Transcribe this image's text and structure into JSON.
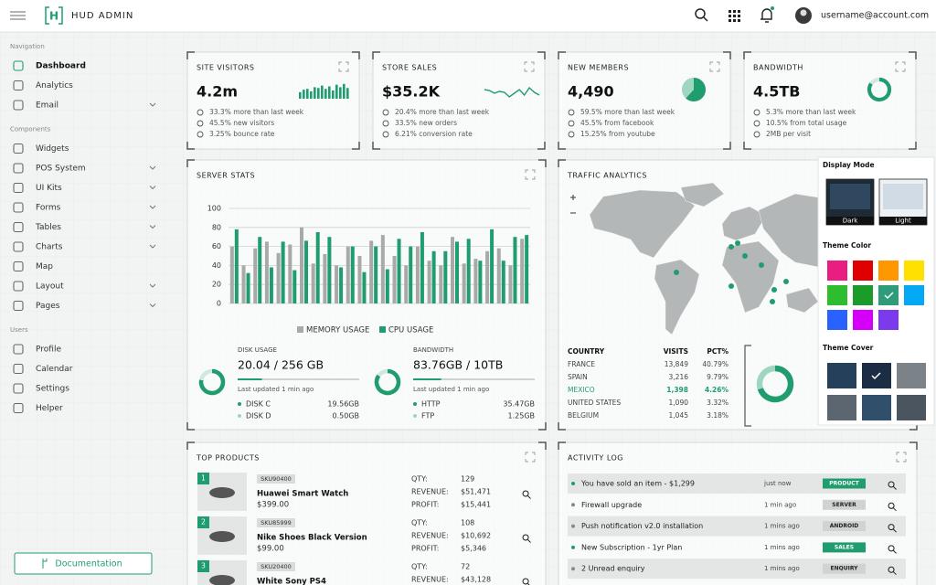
{
  "header": {
    "logo_mark": "H",
    "brand": "HUD ADMIN",
    "user": "username@account.com"
  },
  "sidebar": {
    "sections": [
      {
        "title": "Navigation",
        "items": [
          {
            "label": "Dashboard",
            "active": true
          },
          {
            "label": "Analytics"
          },
          {
            "label": "Email",
            "submenu": true
          }
        ]
      },
      {
        "title": "Components",
        "items": [
          {
            "label": "Widgets"
          },
          {
            "label": "POS System",
            "submenu": true
          },
          {
            "label": "UI Kits",
            "submenu": true
          },
          {
            "label": "Forms",
            "submenu": true
          },
          {
            "label": "Tables",
            "submenu": true
          },
          {
            "label": "Charts",
            "submenu": true
          },
          {
            "label": "Map"
          },
          {
            "label": "Layout",
            "submenu": true
          },
          {
            "label": "Pages",
            "submenu": true
          }
        ]
      },
      {
        "title": "Users",
        "items": [
          {
            "label": "Profile"
          },
          {
            "label": "Calendar"
          },
          {
            "label": "Settings"
          },
          {
            "label": "Helper"
          }
        ]
      }
    ],
    "documentation": "Documentation"
  },
  "stat_cards": [
    {
      "title": "SITE VISITORS",
      "value": "4.2m",
      "lines": [
        "33.3% more than last week",
        "45.5% new visitors",
        "3.25% bounce rate"
      ],
      "chart": {
        "type": "bar",
        "color": "#1f9d6f",
        "values": [
          40,
          55,
          60,
          45,
          70,
          65,
          80,
          60,
          75,
          50,
          85,
          70,
          90,
          65
        ]
      }
    },
    {
      "title": "STORE SALES",
      "value": "$35.2K",
      "lines": [
        "20.4% more than last week",
        "33.5% new orders",
        "6.21% conversion rate"
      ],
      "chart": {
        "type": "line",
        "color": "#1f9d6f",
        "values": [
          60,
          55,
          40,
          50,
          45,
          20,
          40,
          60,
          30,
          70,
          45,
          30
        ]
      }
    },
    {
      "title": "NEW MEMBERS",
      "value": "4,490",
      "lines": [
        "59.5% more than last week",
        "45.5% from facebook",
        "15.25% from youtube"
      ],
      "chart": {
        "type": "pie",
        "colors": [
          "#1f9d6f",
          "#9fd6bf"
        ],
        "values": [
          62,
          38
        ]
      }
    },
    {
      "title": "BANDWIDTH",
      "value": "4.5TB",
      "lines": [
        "5.3% more than last week",
        "10.5% from total usage",
        "2MB per visit"
      ],
      "chart": {
        "type": "donut",
        "colors": [
          "#1f9d6f",
          "#cfe9de"
        ],
        "values": [
          85,
          15
        ]
      }
    }
  ],
  "server_stats": {
    "title": "SERVER STATS",
    "chart_data": {
      "type": "bar",
      "ylim": [
        0,
        100
      ],
      "yticks": [
        0,
        20,
        40,
        60,
        80,
        100
      ],
      "grid": true,
      "series": [
        {
          "name": "MEMORY USAGE",
          "color": "#a9a9a9",
          "values": [
            60,
            40,
            58,
            65,
            53,
            62,
            80,
            42,
            52,
            40,
            60,
            50,
            66,
            72,
            50,
            40,
            60,
            45,
            40,
            70,
            42,
            47,
            55,
            58,
            40,
            68
          ]
        },
        {
          "name": "CPU USAGE",
          "color": "#1f9d6f",
          "values": [
            78,
            32,
            70,
            38,
            65,
            35,
            66,
            75,
            70,
            38,
            60,
            33,
            60,
            36,
            68,
            60,
            75,
            55,
            55,
            65,
            68,
            45,
            78,
            45,
            70,
            72
          ]
        }
      ]
    },
    "panels": [
      {
        "title": "DISK USAGE",
        "value": "20.04 / 256 GB",
        "progress": 20,
        "updated": "Last updated 1 min ago",
        "chart": {
          "type": "donut",
          "colors": [
            "#1f9d6f",
            "#cfe9de"
          ],
          "values": [
            78,
            22
          ]
        },
        "rows": [
          [
            "DISK C",
            "19.56GB"
          ],
          [
            "DISK D",
            "0.50GB"
          ]
        ]
      },
      {
        "title": "BANDWIDTH",
        "value": "83.76GB / 10TB",
        "progress": 23,
        "updated": "Last updated 1 min ago",
        "chart": {
          "type": "donut",
          "colors": [
            "#1f9d6f",
            "#cfe9de"
          ],
          "values": [
            85,
            15
          ]
        },
        "rows": [
          [
            "HTTP",
            "35.47GB"
          ],
          [
            "FTP",
            "1.25GB"
          ]
        ]
      }
    ]
  },
  "traffic": {
    "title": "TRAFFIC ANALYTICS",
    "columns": [
      "COUNTRY",
      "VISITS",
      "PCT%"
    ],
    "rows": [
      [
        "FRANCE",
        "13,849",
        "40.79%"
      ],
      [
        "SPAIN",
        "3,216",
        "9.79%"
      ],
      [
        "MEXICO",
        "1,398",
        "4.26%"
      ],
      [
        "UNITED STATES",
        "1,090",
        "3.32%"
      ],
      [
        "BELGIUM",
        "1,045",
        "3.18%"
      ]
    ],
    "highlight_row": 2,
    "chart": {
      "type": "donut",
      "colors": [
        "#1f9d6f",
        "#9fd6bf"
      ],
      "values": [
        70,
        30
      ]
    }
  },
  "theme_panel": {
    "display_title": "Display Mode",
    "modes": [
      "Dark",
      "Light"
    ],
    "color_title": "Theme Color",
    "colors": [
      "#e91e80",
      "#e00000",
      "#ff9800",
      "#ffe000",
      "#2ebd2e",
      "#1a9b2a",
      "#2e9c7a",
      "#03a9f4",
      "#2962ff",
      "#d500f9",
      "#7c3aed"
    ],
    "selected_color": 6,
    "cover_title": "Theme Cover",
    "selected_cover": 1
  },
  "products": {
    "title": "TOP PRODUCTS",
    "labels": [
      "QTY:",
      "REVENUE:",
      "PROFIT:"
    ],
    "items": [
      {
        "rank": 1,
        "sku": "SKU90400",
        "name": "Huawei Smart Watch",
        "price": "$399.00",
        "stats": [
          "129",
          "$51,471",
          "$15,441"
        ]
      },
      {
        "rank": 2,
        "sku": "SKU85999",
        "name": "Nike Shoes Black Version",
        "price": "$99.00",
        "stats": [
          "108",
          "$10,692",
          "$5,346"
        ]
      },
      {
        "rank": 3,
        "sku": "SKU20400",
        "name": "White Sony PS4",
        "stats": [
          "72",
          "$43,128"
        ]
      }
    ]
  },
  "activity": {
    "title": "ACTIVITY LOG",
    "rows": [
      {
        "text": "You have sold an item - $1,299",
        "time": "just now",
        "badge": "PRODUCT",
        "highlight": true
      },
      {
        "text": "Firewall upgrade",
        "time": "1 min ago",
        "badge": "SERVER"
      },
      {
        "text": "Push notification v2.0 installation",
        "time": "1 mins ago",
        "badge": "ANDROID"
      },
      {
        "text": "New Subscription - 1yr Plan",
        "time": "1 mins ago",
        "badge": "SALES",
        "highlight": true
      },
      {
        "text": "2 Unread enquiry",
        "time": "1 mins ago",
        "badge": "ENQUIRY"
      }
    ]
  }
}
